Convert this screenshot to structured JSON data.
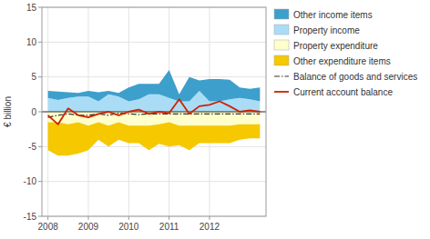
{
  "chart_data": {
    "type": "area",
    "stacked": true,
    "y_label": "€ billion",
    "x": [
      2008.0,
      2008.25,
      2008.5,
      2008.75,
      2009.0,
      2009.25,
      2009.5,
      2009.75,
      2010.0,
      2010.25,
      2010.5,
      2010.75,
      2011.0,
      2011.25,
      2011.5,
      2011.75,
      2012.0,
      2012.25,
      2012.5,
      2012.75,
      2013.0,
      2013.25
    ],
    "xlim": [
      2007.85,
      2013.4
    ],
    "xticks": [
      2008,
      2009,
      2010,
      2011,
      2012
    ],
    "ylim": [
      -15,
      15
    ],
    "yticks": [
      -15,
      -10,
      -5,
      0,
      5,
      10,
      15
    ],
    "grid": true,
    "legend": "right",
    "series": [
      {
        "name": "Other income items",
        "color": "#3d9fcc",
        "values": [
          1.0,
          1.2,
          0.8,
          0.5,
          0.8,
          1.3,
          0.5,
          0.5,
          2.0,
          2.2,
          1.5,
          1.5,
          4.0,
          1.0,
          3.5,
          1.5,
          3.2,
          3.2,
          2.8,
          1.5,
          1.5,
          2.0
        ]
      },
      {
        "name": "Property income",
        "color": "#aaddf5",
        "values": [
          2.0,
          1.7,
          2.0,
          2.2,
          2.2,
          1.5,
          2.5,
          2.2,
          1.5,
          1.8,
          2.5,
          2.5,
          2.0,
          1.5,
          1.5,
          3.0,
          1.5,
          1.5,
          1.8,
          2.0,
          1.8,
          1.5
        ]
      },
      {
        "name": "Property expenditure",
        "color": "#ffffcc",
        "values": [
          -1.5,
          -1.5,
          -1.8,
          -1.5,
          -2.0,
          -1.5,
          -2.0,
          -1.5,
          -2.0,
          -2.0,
          -2.0,
          -1.8,
          -1.5,
          -2.0,
          -2.0,
          -2.0,
          -2.0,
          -2.0,
          -2.0,
          -1.8,
          -1.8,
          -1.8
        ]
      },
      {
        "name": "Other expenditure items",
        "color": "#f5c800",
        "values": [
          -4.0,
          -4.8,
          -4.5,
          -4.5,
          -3.5,
          -2.5,
          -3.0,
          -2.5,
          -2.5,
          -2.5,
          -3.5,
          -2.8,
          -3.5,
          -2.8,
          -3.5,
          -2.5,
          -2.5,
          -2.5,
          -2.5,
          -2.2,
          -2.0,
          -2.0
        ]
      },
      {
        "name": "Balance of goods and services",
        "type": "line",
        "line_style": "dashdot",
        "color": "#333333",
        "values": [
          -0.8,
          -0.5,
          -0.3,
          -0.5,
          -0.5,
          -0.3,
          -0.5,
          -0.2,
          -0.3,
          -0.4,
          -0.3,
          -0.3,
          -0.3,
          -0.3,
          -0.3,
          -0.3,
          -0.3,
          -0.3,
          -0.3,
          -0.3,
          -0.3,
          -0.3
        ]
      },
      {
        "name": "Current account balance",
        "type": "line",
        "line_style": "solid",
        "color": "#cc2200",
        "values": [
          -0.5,
          -1.8,
          0.5,
          -0.5,
          -0.8,
          -0.3,
          0.0,
          -0.5,
          0.0,
          0.3,
          -0.3,
          0.0,
          -0.2,
          1.8,
          -0.3,
          0.8,
          1.0,
          1.5,
          0.8,
          0.0,
          0.2,
          0.0
        ]
      }
    ]
  }
}
